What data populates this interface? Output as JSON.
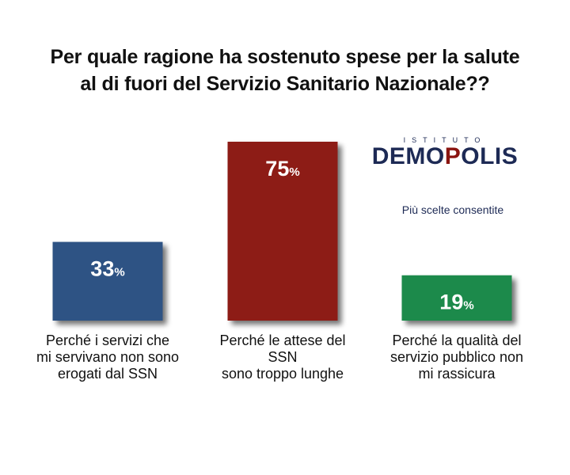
{
  "title_lines": [
    "Per quale ragione ha sostenuto spese per la salute",
    "al di fuori del Servizio Sanitario Nazionale??"
  ],
  "logo": {
    "top": "ISTITUTO",
    "main": "DEMOPOLIS",
    "text_color": "#1d2a55",
    "dot_color": "#8a1410"
  },
  "note": "Più scelte consentite",
  "chart_data": {
    "type": "bar",
    "title": "Per quale ragione ha sostenuto spese per la salute al di fuori del Servizio Sanitario Nazionale??",
    "unit": "%",
    "ylim": [
      0,
      75
    ],
    "grid": false,
    "categories": [
      "Perché i servizi che mi servivano non sono erogati dal SSN",
      "Perché le attese del SSN sono troppo lunghe",
      "Perché la qualità del servizio pubblico non mi rassicura"
    ],
    "category_label_lines": [
      [
        "Perché i servizi che",
        "mi servivano non sono",
        "erogati dal SSN"
      ],
      [
        "Perché le attese del",
        "SSN",
        "sono troppo lunghe"
      ],
      [
        "Perché la qualità del",
        "servizio pubblico non",
        "mi rassicura"
      ]
    ],
    "values": [
      33,
      75,
      19
    ],
    "value_labels": [
      "33",
      "75",
      "19"
    ],
    "colors": [
      "#2f5384",
      "#8d1a12",
      "#1c8a4c"
    ]
  }
}
